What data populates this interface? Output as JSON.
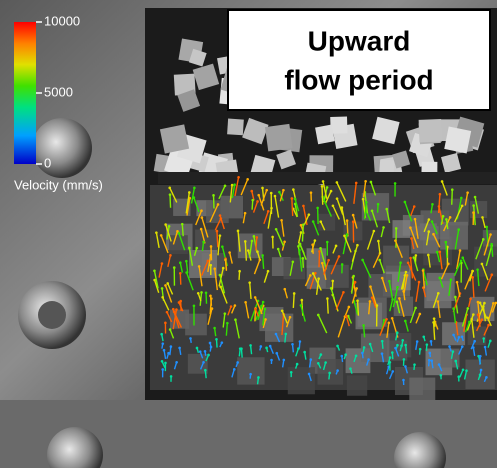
{
  "title": {
    "line1": "Upward",
    "line2": "flow period"
  },
  "colorbar": {
    "label": "Velocity (mm/s)",
    "lim": [
      0,
      10000
    ],
    "ticks": [
      10000,
      5000,
      0
    ]
  }
}
